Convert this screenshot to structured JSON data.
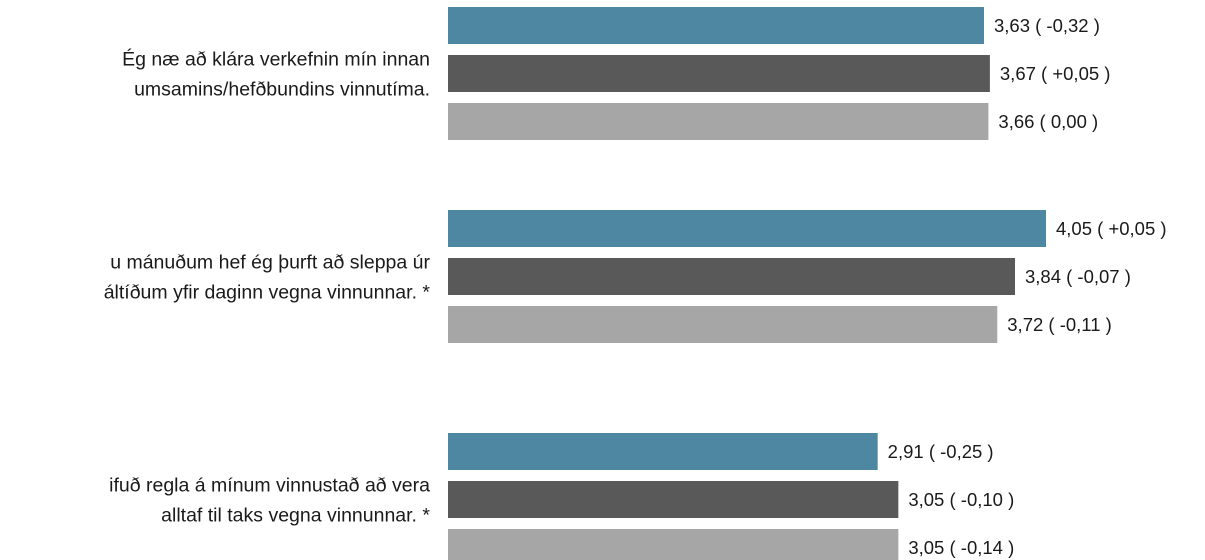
{
  "chart_data": {
    "type": "bar",
    "orientation": "horizontal",
    "xlim": [
      0,
      5
    ],
    "grid": false,
    "legend": "none",
    "categories": [
      {
        "lines": [
          "Ég næ að klára verkefnin mín innan",
          "umsamins/hefðbundins vinnutíma."
        ]
      },
      {
        "lines": [
          "u mánuðum hef ég þurft að sleppa úr",
          "áltíðum yfir daginn vegna vinnunnar. *"
        ]
      },
      {
        "lines": [
          "ifuð regla á mínum vinnustað að vera",
          "alltaf til taks vegna vinnunnar. *"
        ]
      }
    ],
    "series": [
      {
        "color": "#4e87a1",
        "values": [
          3.63,
          4.05,
          2.91
        ],
        "labels": [
          "3,63 ( -0,32 )",
          "4,05 ( +0,05 )",
          "2,91 ( -0,25 )"
        ]
      },
      {
        "color": "#595959",
        "values": [
          3.67,
          3.84,
          3.05
        ],
        "labels": [
          "3,67 ( +0,05 )",
          "3,84 ( -0,07 )",
          "3,05 ( -0,10 )"
        ]
      },
      {
        "color": "#a6a6a6",
        "values": [
          3.66,
          3.72,
          3.05
        ],
        "labels": [
          "3,66 ( 0,00 )",
          "3,72 ( -0,11 )",
          "3,05 ( -0,14 )"
        ]
      }
    ]
  }
}
